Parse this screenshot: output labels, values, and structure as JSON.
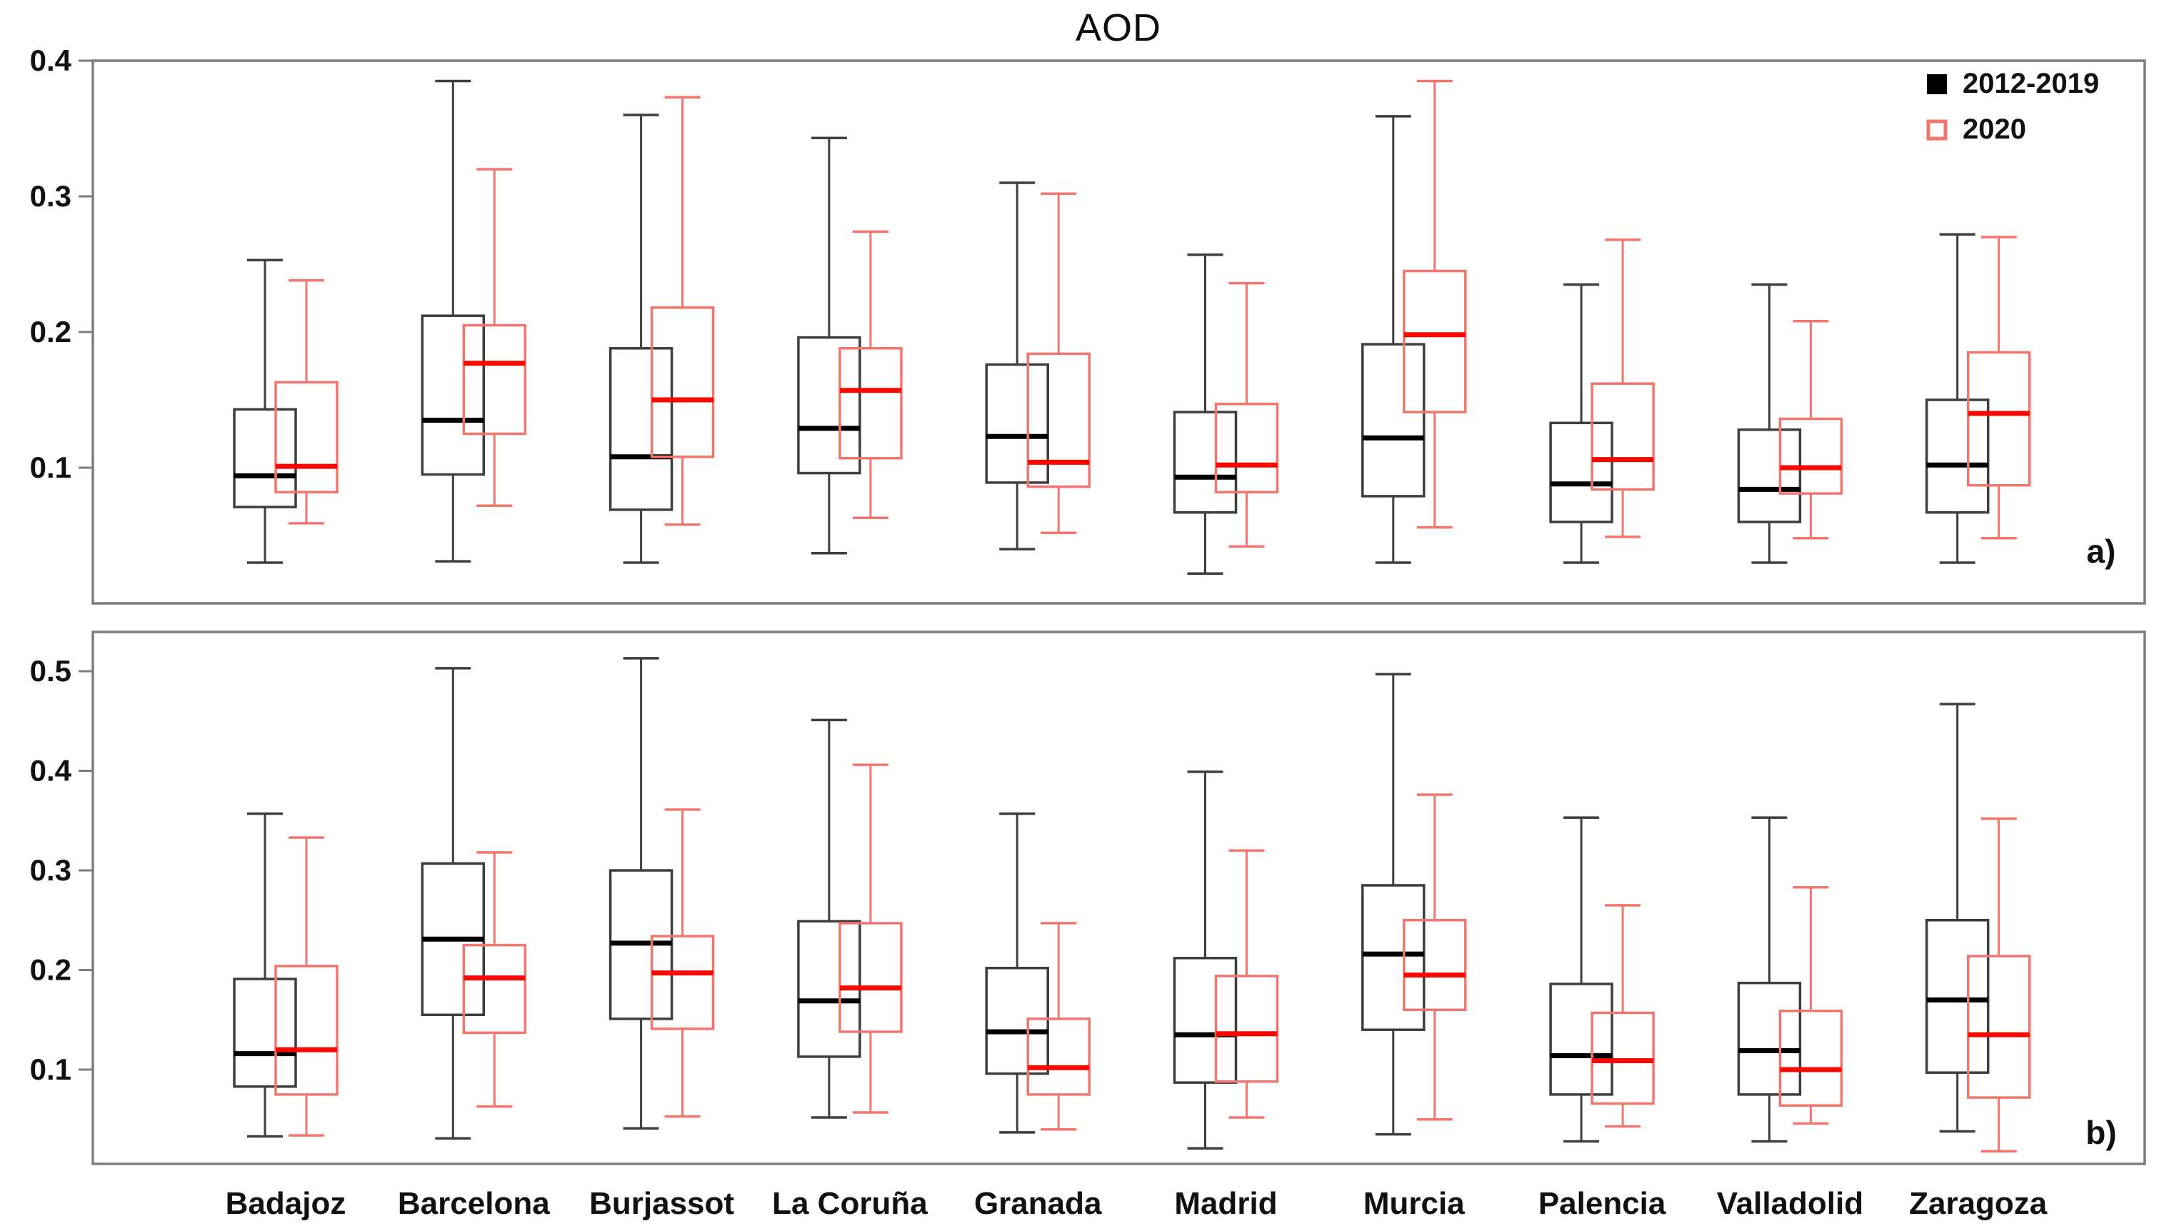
{
  "title": "AOD",
  "legend": {
    "items": [
      {
        "label": "2012-2019",
        "marker": "filled-square-icon",
        "color": "#000000"
      },
      {
        "label": "2020",
        "marker": "open-square-icon",
        "color": "#f2766d"
      }
    ]
  },
  "colors": {
    "frame": "#7d7d7d",
    "text": "#111111",
    "black_box_stroke": "#3e3e3e",
    "black_median": "#000000",
    "red_box_stroke": "#f2766d",
    "red_median": "#f50900"
  },
  "categories": [
    "Badajoz",
    "Barcelona",
    "Burjassot",
    "La Coruña",
    "Granada",
    "Madrid",
    "Murcia",
    "Palencia",
    "Valladolid",
    "Zaragoza"
  ],
  "chart_data": [
    {
      "type": "box",
      "panel": "a",
      "corner_label": "a)",
      "title": "AOD",
      "xlabel": "",
      "ylabel": "",
      "ylim": [
        0,
        0.4
      ],
      "yticks": [
        0.1,
        0.2,
        0.3,
        0.4
      ],
      "grid": false,
      "legend_position": "top-right",
      "categories": [
        "Badajoz",
        "Barcelona",
        "Burjassot",
        "La Coruña",
        "Granada",
        "Madrid",
        "Murcia",
        "Palencia",
        "Valladolid",
        "Zaragoza"
      ],
      "box_stats_order": [
        "min",
        "q1",
        "median",
        "q3",
        "max"
      ],
      "series": [
        {
          "name": "2012-2019",
          "values": [
            [
              0.03,
              0.071,
              0.094,
              0.143,
              0.253
            ],
            [
              0.031,
              0.095,
              0.135,
              0.212,
              0.385
            ],
            [
              0.03,
              0.069,
              0.108,
              0.188,
              0.36
            ],
            [
              0.037,
              0.096,
              0.129,
              0.196,
              0.343
            ],
            [
              0.04,
              0.089,
              0.123,
              0.176,
              0.31
            ],
            [
              0.022,
              0.067,
              0.093,
              0.141,
              0.257
            ],
            [
              0.03,
              0.079,
              0.122,
              0.191,
              0.359
            ],
            [
              0.03,
              0.06,
              0.088,
              0.133,
              0.235
            ],
            [
              0.03,
              0.06,
              0.084,
              0.128,
              0.235
            ],
            [
              0.03,
              0.067,
              0.102,
              0.15,
              0.272
            ]
          ]
        },
        {
          "name": "2020",
          "values": [
            [
              0.059,
              0.082,
              0.101,
              0.163,
              0.238
            ],
            [
              0.072,
              0.125,
              0.177,
              0.205,
              0.32
            ],
            [
              0.058,
              0.108,
              0.15,
              0.218,
              0.373
            ],
            [
              0.063,
              0.107,
              0.157,
              0.188,
              0.274
            ],
            [
              0.052,
              0.086,
              0.104,
              0.184,
              0.302
            ],
            [
              0.042,
              0.082,
              0.102,
              0.147,
              0.236
            ],
            [
              0.056,
              0.141,
              0.198,
              0.245,
              0.385
            ],
            [
              0.049,
              0.084,
              0.106,
              0.162,
              0.268
            ],
            [
              0.048,
              0.081,
              0.1,
              0.136,
              0.208
            ],
            [
              0.048,
              0.087,
              0.14,
              0.185,
              0.27
            ]
          ]
        }
      ]
    },
    {
      "type": "box",
      "panel": "b",
      "corner_label": "b)",
      "title": "",
      "xlabel": "",
      "ylabel": "",
      "ylim": [
        0,
        0.54
      ],
      "yticks": [
        0.1,
        0.2,
        0.3,
        0.4,
        0.5
      ],
      "grid": false,
      "legend_position": "none",
      "categories": [
        "Badajoz",
        "Barcelona",
        "Burjassot",
        "La Coruña",
        "Granada",
        "Madrid",
        "Murcia",
        "Palencia",
        "Valladolid",
        "Zaragoza"
      ],
      "box_stats_order": [
        "min",
        "q1",
        "median",
        "q3",
        "max"
      ],
      "series": [
        {
          "name": "2012-2019",
          "values": [
            [
              0.033,
              0.083,
              0.116,
              0.191,
              0.357
            ],
            [
              0.031,
              0.155,
              0.231,
              0.307,
              0.503
            ],
            [
              0.041,
              0.151,
              0.227,
              0.3,
              0.513
            ],
            [
              0.052,
              0.113,
              0.169,
              0.249,
              0.451
            ],
            [
              0.037,
              0.096,
              0.138,
              0.202,
              0.357
            ],
            [
              0.021,
              0.087,
              0.135,
              0.212,
              0.399
            ],
            [
              0.035,
              0.14,
              0.216,
              0.285,
              0.497
            ],
            [
              0.028,
              0.075,
              0.114,
              0.186,
              0.353
            ],
            [
              0.028,
              0.075,
              0.119,
              0.187,
              0.353
            ],
            [
              0.038,
              0.097,
              0.17,
              0.25,
              0.467
            ]
          ]
        },
        {
          "name": "2020",
          "values": [
            [
              0.034,
              0.075,
              0.12,
              0.204,
              0.333
            ],
            [
              0.063,
              0.137,
              0.192,
              0.225,
              0.318
            ],
            [
              0.053,
              0.141,
              0.197,
              0.234,
              0.361
            ],
            [
              0.057,
              0.138,
              0.182,
              0.247,
              0.406
            ],
            [
              0.04,
              0.075,
              0.102,
              0.151,
              0.247
            ],
            [
              0.052,
              0.088,
              0.136,
              0.194,
              0.32
            ],
            [
              0.05,
              0.16,
              0.195,
              0.25,
              0.376
            ],
            [
              0.043,
              0.066,
              0.109,
              0.157,
              0.265
            ],
            [
              0.046,
              0.064,
              0.1,
              0.159,
              0.283
            ],
            [
              0.018,
              0.072,
              0.135,
              0.214,
              0.352
            ]
          ]
        }
      ]
    }
  ]
}
